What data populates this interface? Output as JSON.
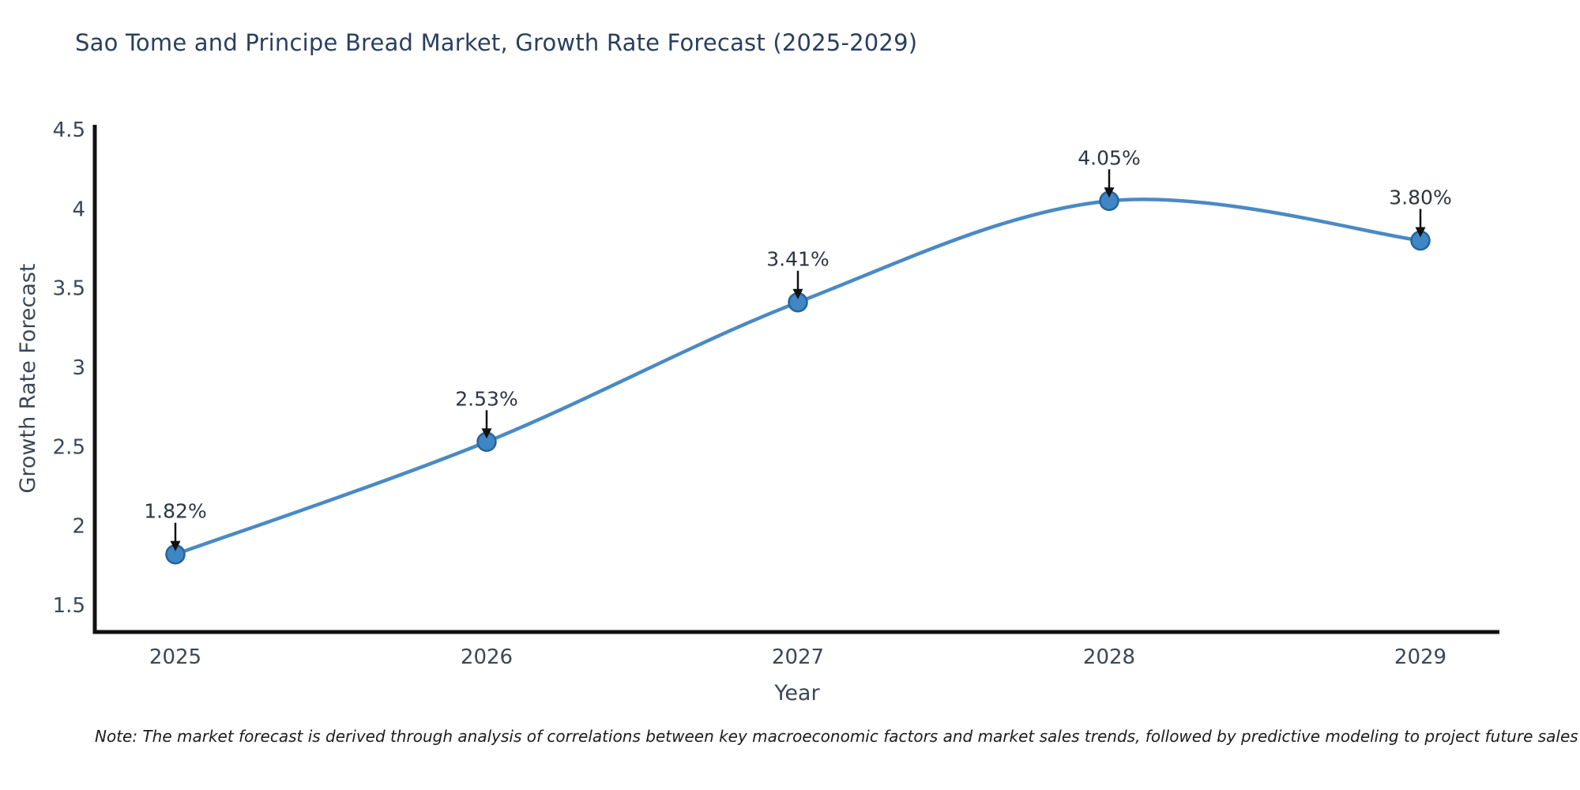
{
  "title": "Sao Tome and Principe Bread Market, Growth Rate Forecast (2025-2029)",
  "note": "Note: The market forecast is derived through analysis of correlations between key macroeconomic factors and market sales trends, followed by predictive modeling to project future sales",
  "chart_data": {
    "type": "line",
    "title": "Sao Tome and Principe Bread Market, Growth Rate Forecast (2025-2029)",
    "x": [
      2025,
      2026,
      2027,
      2028,
      2029
    ],
    "xticklabels": [
      "2025",
      "2026",
      "2027",
      "2028",
      "2029"
    ],
    "series": [
      {
        "name": "Growth Rate Forecast",
        "values": [
          1.82,
          2.53,
          3.41,
          4.05,
          3.8
        ]
      }
    ],
    "point_labels": [
      "1.82%",
      "2.53%",
      "3.41%",
      "4.05%",
      "3.80%"
    ],
    "xlabel": "Year",
    "ylabel": "Growth Rate Forecast",
    "yticks": [
      1.5,
      2,
      2.5,
      3,
      3.5,
      4,
      4.5
    ],
    "ylim": [
      1.33,
      4.53
    ],
    "line_shape": "spline",
    "grid": false,
    "legend": "none",
    "annotation_style": "black-arrow-down",
    "colors": {
      "line": "#4a8ac4",
      "marker_fill": "#3f86c4",
      "marker_stroke": "#27639c",
      "axis": "#111111",
      "tick_text": "#3b4757",
      "axis_title_text": "#3b4757",
      "title_text": "#2a3f5f",
      "annotation_text": "#2f3440",
      "annotation_arrow": "#111111"
    }
  }
}
